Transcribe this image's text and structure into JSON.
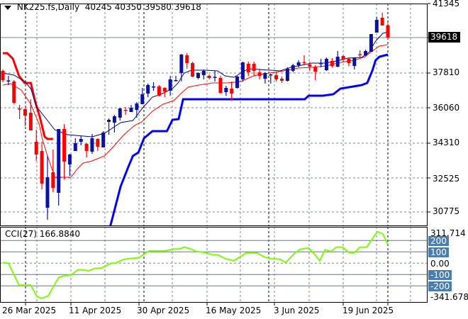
{
  "header": {
    "symbol": "NK225.fs,Daily",
    "open": "40245",
    "high": "40350",
    "low": "39580",
    "close": "39618",
    "menu_icon": "triangle-down-icon"
  },
  "price_axis": {
    "ticks": [
      "41345",
      "37810",
      "36060",
      "34310",
      "32525",
      "30775"
    ],
    "last_price": "39618"
  },
  "cci": {
    "title": "CCI(27)",
    "value": "166.8840",
    "max_label": "311.714",
    "min_label": "-341.6783",
    "zero_label": "0.00",
    "level_labels": [
      "200",
      "100",
      "-100",
      "-200"
    ]
  },
  "time_axis": {
    "labels": [
      "26 Mar 2025",
      "11 Apr 2025",
      "30 Apr 2025",
      "16 May 2025",
      "3 Jun 2025",
      "19 Jun 2025"
    ]
  },
  "colors": {
    "bull": "#0a12a0",
    "bear": "#ff0000",
    "ma_fast": "#000080",
    "ma_slow": "#ff0000",
    "stop_up": "#0000ff",
    "stop_down": "#ff0000",
    "cci": "#7cfc00",
    "levels": "#4a7eac"
  },
  "chart_data": {
    "type": "candlestick",
    "ylim": [
      30077,
      41345
    ],
    "candles_ohlc": [
      [
        37925,
        37997,
        37349,
        37457
      ],
      [
        37420,
        37673,
        37205,
        37440
      ],
      [
        37385,
        37457,
        36233,
        36305
      ],
      [
        36017,
        36197,
        35477,
        35981
      ],
      [
        35981,
        36053,
        35117,
        35657
      ],
      [
        35801,
        36485,
        34901,
        34901
      ],
      [
        34325,
        34937,
        33353,
        33677
      ],
      [
        33857,
        34325,
        31913,
        32201
      ],
      [
        30977,
        33605,
        30365,
        32525
      ],
      [
        32777,
        33929,
        31769,
        31985
      ],
      [
        31733,
        34973,
        31085,
        34973
      ],
      [
        34973,
        35225,
        32417,
        33317
      ],
      [
        33173,
        33713,
        32597,
        33677
      ],
      [
        33857,
        34505,
        33857,
        34253
      ],
      [
        34325,
        34613,
        34145,
        34469
      ],
      [
        34217,
        34253,
        33533,
        33857
      ],
      [
        33821,
        34721,
        33713,
        34505
      ],
      [
        34469,
        34505,
        33857,
        34073
      ],
      [
        34037,
        34865,
        34037,
        34793
      ],
      [
        35333,
        35513,
        34685,
        35441
      ],
      [
        35297,
        35693,
        34793,
        35621
      ],
      [
        35549,
        36053,
        35405,
        36017
      ],
      [
        35945,
        36089,
        35693,
        35909
      ],
      [
        35837,
        36197,
        35837,
        36053
      ],
      [
        35945,
        36341,
        35549,
        36269
      ],
      [
        36233,
        37061,
        36233,
        36737
      ],
      [
        36773,
        37277,
        36593,
        37205
      ],
      [
        37097,
        37349,
        36917,
        37133
      ],
      [
        37133,
        37205,
        36629,
        36665
      ],
      [
        37061,
        37097,
        36593,
        36881
      ],
      [
        36917,
        37673,
        36665,
        37493
      ],
      [
        37421,
        37673,
        37385,
        37457
      ],
      [
        37817,
        38789,
        37385,
        38753
      ],
      [
        38717,
        38825,
        38033,
        38321
      ],
      [
        38321,
        38393,
        37601,
        37637
      ],
      [
        37565,
        37853,
        37493,
        37817
      ],
      [
        37709,
        37997,
        37493,
        37925
      ],
      [
        37673,
        37745,
        37493,
        37565
      ],
      [
        37590,
        37925,
        37385,
        37620
      ],
      [
        37565,
        37673,
        36773,
        36809
      ],
      [
        36845,
        37169,
        36665,
        37061
      ],
      [
        37025,
        37385,
        36413,
        36773
      ],
      [
        37061,
        37673,
        37025,
        37637
      ],
      [
        37493,
        38393,
        37385,
        38357
      ],
      [
        38285,
        38393,
        37673,
        37853
      ],
      [
        38285,
        38393,
        37673,
        37925
      ],
      [
        37853,
        38033,
        37493,
        37673
      ],
      [
        37529,
        37853,
        37277,
        37817
      ],
      [
        37730,
        37781,
        37277,
        37745
      ],
      [
        37709,
        37853,
        37385,
        37493
      ],
      [
        37529,
        37637,
        37313,
        37421
      ],
      [
        37421,
        38105,
        37385,
        38033
      ],
      [
        37925,
        38285,
        37853,
        38213
      ],
      [
        38213,
        38465,
        38105,
        38357
      ],
      [
        38370,
        38717,
        38213,
        38340
      ],
      [
        38249,
        38393,
        37925,
        38141
      ],
      [
        38105,
        38213,
        37457,
        37889
      ],
      [
        38300,
        38537,
        38105,
        38321
      ],
      [
        37961,
        38609,
        37925,
        38537
      ],
      [
        38429,
        38573,
        38105,
        38177
      ],
      [
        38141,
        38933,
        38105,
        38645
      ],
      [
        38681,
        38753,
        38357,
        38501
      ],
      [
        38537,
        38609,
        38177,
        38321
      ],
      [
        38177,
        38609,
        37997,
        38609
      ],
      [
        38770,
        38969,
        38609,
        38740
      ],
      [
        38717,
        39005,
        38681,
        38933
      ],
      [
        38897,
        39797,
        38897,
        39797
      ],
      [
        39869,
        40661,
        39869,
        40517
      ],
      [
        40625,
        40877,
        40229,
        40229
      ],
      [
        40245,
        40350,
        39580,
        39618
      ]
    ],
    "ma_fast": [
      [
        0,
        37817
      ],
      [
        2,
        37709
      ],
      [
        3.9,
        37385
      ],
      [
        5,
        37025
      ],
      [
        6,
        36125
      ],
      [
        8,
        35405
      ],
      [
        9.3,
        34937
      ],
      [
        11.6,
        34685
      ],
      [
        16,
        34577
      ],
      [
        18.2,
        34757
      ],
      [
        19.2,
        34937
      ],
      [
        21.1,
        35297
      ],
      [
        23.3,
        35405
      ],
      [
        24.3,
        35765
      ],
      [
        25.3,
        36125
      ],
      [
        26.8,
        36593
      ],
      [
        28.3,
        36737
      ],
      [
        30.4,
        37025
      ],
      [
        31.4,
        37313
      ],
      [
        32.5,
        37817
      ],
      [
        33.8,
        37961
      ],
      [
        36.3,
        37961
      ],
      [
        38.5,
        37925
      ],
      [
        39.8,
        37673
      ],
      [
        41.4,
        37601
      ],
      [
        42.7,
        37817
      ],
      [
        44,
        38033
      ],
      [
        45.9,
        37997
      ],
      [
        49.7,
        37925
      ],
      [
        51.6,
        38105
      ],
      [
        53.5,
        38213
      ],
      [
        55.4,
        38321
      ],
      [
        57.9,
        38321
      ],
      [
        59.8,
        38429
      ],
      [
        61.8,
        38573
      ],
      [
        64.3,
        38609
      ],
      [
        65.6,
        38861
      ],
      [
        66.8,
        39437
      ],
      [
        68.1,
        39833
      ],
      [
        69,
        39905
      ]
    ],
    "ma_slow": [
      [
        0,
        37205
      ],
      [
        1.4,
        37277
      ],
      [
        3.3,
        36953
      ],
      [
        5,
        36233
      ],
      [
        6.5,
        35225
      ],
      [
        7.1,
        34433
      ],
      [
        8,
        33605
      ],
      [
        9.3,
        32525
      ],
      [
        12.2,
        32525
      ],
      [
        13.5,
        32993
      ],
      [
        14.4,
        33245
      ],
      [
        16,
        33353
      ],
      [
        18.2,
        33605
      ],
      [
        19.8,
        34073
      ],
      [
        21.7,
        34685
      ],
      [
        23.6,
        35153
      ],
      [
        24.9,
        35333
      ],
      [
        26.8,
        35873
      ],
      [
        28.7,
        36233
      ],
      [
        30.6,
        36413
      ],
      [
        31.9,
        36773
      ],
      [
        33.2,
        37097
      ],
      [
        35.1,
        37205
      ],
      [
        37.6,
        37313
      ],
      [
        40.2,
        37313
      ],
      [
        42.7,
        37385
      ],
      [
        44.6,
        37637
      ],
      [
        45.9,
        37745
      ],
      [
        47.8,
        37817
      ],
      [
        50.3,
        37925
      ],
      [
        52.9,
        38069
      ],
      [
        55.4,
        38105
      ],
      [
        57.9,
        38177
      ],
      [
        60.5,
        38357
      ],
      [
        63,
        38465
      ],
      [
        64.9,
        38645
      ],
      [
        66.2,
        38933
      ],
      [
        67.5,
        39185
      ],
      [
        69,
        39257
      ]
    ],
    "stop_down": [
      [
        0,
        38825
      ],
      [
        0.8,
        38825
      ],
      [
        1.8,
        38537
      ],
      [
        2.9,
        37673
      ],
      [
        3.9,
        37313
      ],
      [
        5,
        37313
      ],
      [
        5.8,
        36377
      ],
      [
        6.7,
        35513
      ],
      [
        7.5,
        34577
      ],
      [
        8,
        34469
      ],
      [
        9,
        34469
      ]
    ],
    "stop_up": [
      [
        18.9,
        29645
      ],
      [
        21.1,
        32057
      ],
      [
        22.4,
        32993
      ],
      [
        23.3,
        33605
      ],
      [
        24.3,
        33785
      ],
      [
        25.3,
        34505
      ],
      [
        26.8,
        34865
      ],
      [
        29.4,
        34865
      ],
      [
        30.4,
        35441
      ],
      [
        31.5,
        35477
      ],
      [
        32.3,
        36485
      ],
      [
        54.1,
        36485
      ],
      [
        54.8,
        36665
      ],
      [
        57.3,
        36665
      ],
      [
        59.2,
        36737
      ],
      [
        60.5,
        37025
      ],
      [
        64.3,
        37205
      ],
      [
        65.3,
        37313
      ],
      [
        66.2,
        37925
      ],
      [
        66.8,
        38465
      ],
      [
        67.5,
        38645
      ],
      [
        69,
        38753
      ]
    ],
    "cci_series": [
      [
        0,
        6
      ],
      [
        1,
        0
      ],
      [
        2.9,
        -194
      ],
      [
        5,
        -194
      ],
      [
        6.1,
        -292
      ],
      [
        6.9,
        -310
      ],
      [
        8.1,
        -290
      ],
      [
        10,
        -125
      ],
      [
        11.2,
        -108
      ],
      [
        12.2,
        -104
      ],
      [
        13.5,
        -58
      ],
      [
        14.4,
        -58
      ],
      [
        15.4,
        -67
      ],
      [
        16.4,
        -46
      ],
      [
        17.7,
        -42
      ],
      [
        19.4,
        0
      ],
      [
        20.2,
        0
      ],
      [
        21.5,
        31
      ],
      [
        22.7,
        42
      ],
      [
        24.3,
        48
      ],
      [
        26.2,
        108
      ],
      [
        27.4,
        108
      ],
      [
        29.1,
        108
      ],
      [
        30.6,
        125
      ],
      [
        31.6,
        125
      ],
      [
        32.5,
        142
      ],
      [
        33.4,
        131
      ],
      [
        34.7,
        104
      ],
      [
        36.3,
        94
      ],
      [
        37.6,
        73
      ],
      [
        38.6,
        73
      ],
      [
        39.8,
        42
      ],
      [
        41.4,
        21
      ],
      [
        43.6,
        90
      ],
      [
        45.6,
        90
      ],
      [
        46.8,
        56
      ],
      [
        47.8,
        42
      ],
      [
        49.7,
        35
      ],
      [
        50.7,
        6
      ],
      [
        52.2,
        83
      ],
      [
        53.2,
        121
      ],
      [
        54.8,
        135
      ],
      [
        55.8,
        83
      ],
      [
        56.8,
        21
      ],
      [
        57.7,
        119
      ],
      [
        58.8,
        104
      ],
      [
        59.8,
        142
      ],
      [
        60.9,
        142
      ],
      [
        62,
        94
      ],
      [
        63,
        94
      ],
      [
        64,
        142
      ],
      [
        65.2,
        142
      ],
      [
        65.9,
        192
      ],
      [
        67.1,
        279
      ],
      [
        68.1,
        258
      ],
      [
        69,
        166.884
      ]
    ],
    "cci_range": [
      -341.6783,
      311.714
    ],
    "cci_levels": [
      200,
      100,
      0,
      -100,
      -200
    ]
  }
}
